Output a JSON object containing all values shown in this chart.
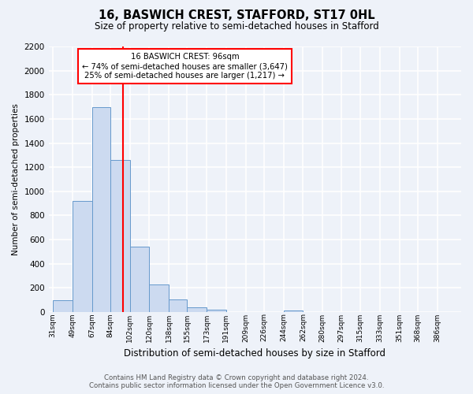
{
  "title": "16, BASWICH CREST, STAFFORD, ST17 0HL",
  "subtitle": "Size of property relative to semi-detached houses in Stafford",
  "xlabel": "Distribution of semi-detached houses by size in Stafford",
  "ylabel": "Number of semi-detached properties",
  "bar_labels": [
    "31sqm",
    "49sqm",
    "67sqm",
    "84sqm",
    "102sqm",
    "120sqm",
    "138sqm",
    "155sqm",
    "173sqm",
    "191sqm",
    "209sqm",
    "226sqm",
    "244sqm",
    "262sqm",
    "280sqm",
    "297sqm",
    "315sqm",
    "333sqm",
    "351sqm",
    "368sqm",
    "386sqm"
  ],
  "bar_values": [
    100,
    920,
    1700,
    1260,
    540,
    230,
    105,
    40,
    20,
    0,
    0,
    0,
    15,
    0,
    0,
    0,
    0,
    0,
    0,
    0,
    0
  ],
  "bar_color": "#ccdaf0",
  "bar_edge_color": "#6699cc",
  "ylim": [
    0,
    2200
  ],
  "yticks": [
    0,
    200,
    400,
    600,
    800,
    1000,
    1200,
    1400,
    1600,
    1800,
    2000,
    2200
  ],
  "marker_label": "16 BASWICH CREST: 96sqm",
  "annotation_line1": "← 74% of semi-detached houses are smaller (3,647)",
  "annotation_line2": "25% of semi-detached houses are larger (1,217) →",
  "vline_color": "red",
  "annotation_box_color": "white",
  "annotation_box_edge_color": "red",
  "footer_line1": "Contains HM Land Registry data © Crown copyright and database right 2024.",
  "footer_line2": "Contains public sector information licensed under the Open Government Licence v3.0.",
  "bg_color": "#eef2f9",
  "grid_color": "white"
}
